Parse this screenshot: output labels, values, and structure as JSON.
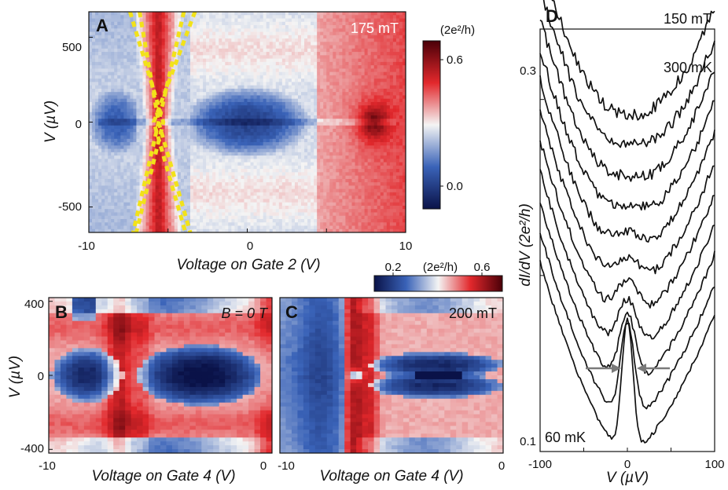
{
  "chart_data": [
    {
      "panel": "A",
      "type": "heatmap",
      "annotation": "175 mT",
      "xlabel": "Voltage on Gate 2 (V)",
      "ylabel": "V (µV)",
      "xlim": [
        -10,
        10
      ],
      "ylim": [
        -650,
        650
      ],
      "x_ticks": [
        "-10",
        "0",
        "10"
      ],
      "y_ticks": [
        "500",
        "0",
        "-500"
      ],
      "colorbar": {
        "label": "(2e²/h)",
        "ticks": [
          "0.6",
          "0.0"
        ],
        "range": [
          -0.1,
          0.7
        ]
      },
      "features": {
        "low_conductance_lobes": [
          [
            -9.5,
            -7.0
          ],
          [
            -3.5,
            3.5
          ]
        ],
        "zero_bias_peak_gate": 8.0,
        "dashed_guides": "yellow dotted crossing lines near gate -5"
      }
    },
    {
      "panel": "B",
      "type": "heatmap",
      "annotation": "B = 0 T",
      "xlabel": "Voltage on Gate 4 (V)",
      "ylabel": "V (µV)",
      "xlim": [
        -10,
        0
      ],
      "ylim": [
        -420,
        420
      ],
      "x_ticks": [
        "-10",
        "0"
      ],
      "y_ticks": [
        "400",
        "0",
        "-400"
      ]
    },
    {
      "panel": "C",
      "type": "heatmap",
      "annotation": "200 mT",
      "xlabel": "Voltage on Gate 4 (V)",
      "xlim": [
        -10,
        0
      ],
      "x_ticks": [
        "-10",
        "0"
      ],
      "colorbar": {
        "label": "(2e²/h)",
        "ticks": [
          "0.2",
          "0.6"
        ],
        "range": [
          0.1,
          0.7
        ]
      }
    },
    {
      "panel": "D",
      "type": "line",
      "annotations": [
        "150 mT",
        "300 mK",
        "60 mK"
      ],
      "xlabel": "V (µV)",
      "ylabel": "dI/dV (2e²/h)",
      "xlim": [
        -100,
        100
      ],
      "ylim": [
        0.1,
        0.34
      ],
      "x_ticks": [
        "-100",
        "0",
        "100"
      ],
      "y_ticks": [
        "0.3",
        "0.1"
      ],
      "temperatures_note": "curves from 60 mK (bottom) to 300 mK (top)",
      "series": [
        {
          "values": "t=0"
        },
        {
          "values": "t=1"
        },
        {
          "values": "t=2"
        },
        {
          "values": "t=3"
        },
        {
          "values": "t=4"
        },
        {
          "values": "t=5"
        },
        {
          "values": "t=6"
        },
        {
          "values": "t=7"
        },
        {
          "values": "t=8"
        },
        {
          "values": "t=9"
        },
        {
          "values": "t=10"
        }
      ]
    }
  ],
  "colors": {
    "low": "#0a1248",
    "mid_low": "#3a63b8",
    "neutral": "#f4f4f4",
    "mid_high": "#e2282c",
    "high": "#4a0008",
    "guide": "#f2e21a",
    "arrow": "#7a7a7a"
  }
}
